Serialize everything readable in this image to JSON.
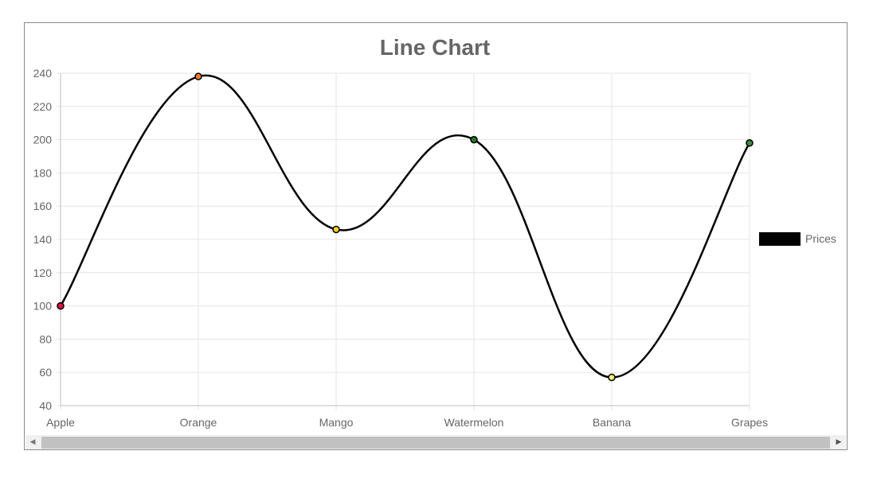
{
  "chart_data": {
    "type": "line",
    "title": "Line Chart",
    "categories": [
      "Apple",
      "Orange",
      "Mango",
      "Watermelon",
      "Banana",
      "Grapes"
    ],
    "series": [
      {
        "name": "Prices",
        "values": [
          100,
          238,
          146,
          200,
          57,
          198
        ],
        "line_color": "#000000",
        "point_colors": [
          "#e0153d",
          "#f07a30",
          "#f2d11a",
          "#1a7a2a",
          "#f4f07a",
          "#3f8a3f"
        ]
      }
    ],
    "ylim": [
      40,
      240
    ],
    "yticks": [
      40,
      60,
      80,
      100,
      120,
      140,
      160,
      180,
      200,
      220,
      240
    ],
    "xlabel": "",
    "ylabel": "",
    "grid": true,
    "legend_position": "right",
    "smooth": true
  },
  "colors": {
    "title": "#666666",
    "tick_label": "#666666",
    "grid": "#e5e5e5",
    "axis": "#bfbfbf"
  }
}
